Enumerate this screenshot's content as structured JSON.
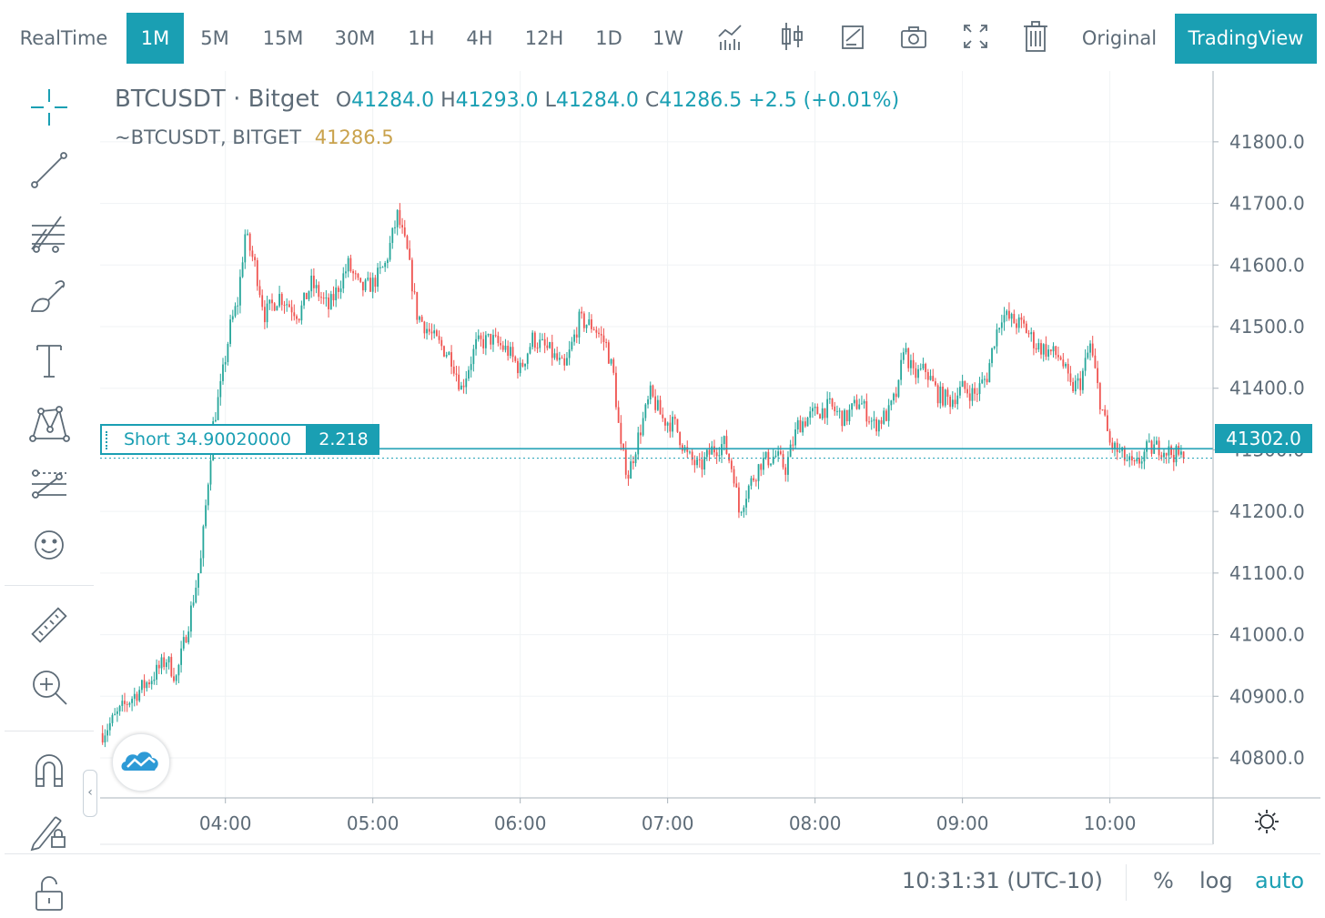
{
  "toolbar": {
    "intervals": [
      "RealTime",
      "1M",
      "5M",
      "15M",
      "30M",
      "1H",
      "4H",
      "12H",
      "1D",
      "1W"
    ],
    "active_interval": "1M",
    "icons": [
      "indicators-icon",
      "candle-type-icon",
      "edit-icon",
      "camera-icon",
      "fullscreen-icon",
      "trash-icon"
    ],
    "original_label": "Original",
    "tradingview_label": "TradingView"
  },
  "sidebar": {
    "icons": [
      "crosshair-icon",
      "trend-line-icon",
      "fib-icon",
      "brush-icon",
      "text-icon",
      "pattern-icon",
      "prediction-icon",
      "emoji-icon",
      "ruler-icon",
      "zoom-in-icon",
      "magnet-icon",
      "lock-drawing-icon",
      "unlock-icon"
    ]
  },
  "legend": {
    "symbol": "BTCUSDT",
    "separator": "·",
    "exchange": "Bitget",
    "o_label": "O",
    "o": "41284.0",
    "h_label": "H",
    "h": "41293.0",
    "l_label": "L",
    "l": "41284.0",
    "c_label": "C",
    "c": "41286.5",
    "change": "+2.5 (+0.01%)",
    "series_label": "~BTCUSDT, BITGET",
    "series_value": "41286.5"
  },
  "position": {
    "label": "Short 34.90020000",
    "qty": "2.218",
    "price": 41302.0,
    "price_label": "41302.0"
  },
  "bottom": {
    "time": "10:31:31 (UTC-10)",
    "percent_label": "%",
    "log_label": "log",
    "auto_label": "auto"
  },
  "colors": {
    "accent": "#1a9fb3",
    "up": "#26a69a",
    "down": "#ef5350",
    "gold": "#c9a24c",
    "text": "#5d6b77",
    "grid": "#f0f3f5"
  },
  "chart_data": {
    "type": "candlestick",
    "timeframe": "1M",
    "symbol": "BTCUSDT",
    "x_ticks": [
      "04:00",
      "05:00",
      "06:00",
      "07:00",
      "08:00",
      "09:00",
      "10:00"
    ],
    "y_ticks": [
      "40800.0",
      "40900.0",
      "41000.0",
      "41100.0",
      "41200.0",
      "41300.0",
      "41400.0",
      "41500.0",
      "41600.0",
      "41700.0",
      "41800.0"
    ],
    "ylim": [
      40735,
      41915
    ],
    "xlim": [
      "03:09",
      "10:42"
    ],
    "last_close": 41286.5,
    "grid": true,
    "close_path": [
      {
        "t": "03:10",
        "p": 40840
      },
      {
        "t": "03:20",
        "p": 40890
      },
      {
        "t": "03:30",
        "p": 40930
      },
      {
        "t": "03:36",
        "p": 40960
      },
      {
        "t": "03:40",
        "p": 40930
      },
      {
        "t": "03:45",
        "p": 41020
      },
      {
        "t": "03:50",
        "p": 41120
      },
      {
        "t": "03:55",
        "p": 41340
      },
      {
        "t": "03:58",
        "p": 41400
      },
      {
        "t": "04:02",
        "p": 41500
      },
      {
        "t": "04:05",
        "p": 41540
      },
      {
        "t": "04:08",
        "p": 41650
      },
      {
        "t": "04:12",
        "p": 41600
      },
      {
        "t": "04:16",
        "p": 41520
      },
      {
        "t": "04:22",
        "p": 41550
      },
      {
        "t": "04:30",
        "p": 41520
      },
      {
        "t": "04:35",
        "p": 41570
      },
      {
        "t": "04:42",
        "p": 41530
      },
      {
        "t": "04:50",
        "p": 41600
      },
      {
        "t": "04:55",
        "p": 41560
      },
      {
        "t": "05:00",
        "p": 41570
      },
      {
        "t": "05:05",
        "p": 41600
      },
      {
        "t": "05:10",
        "p": 41680
      },
      {
        "t": "05:14",
        "p": 41620
      },
      {
        "t": "05:18",
        "p": 41520
      },
      {
        "t": "05:25",
        "p": 41480
      },
      {
        "t": "05:32",
        "p": 41450
      },
      {
        "t": "05:36",
        "p": 41400
      },
      {
        "t": "05:42",
        "p": 41470
      },
      {
        "t": "05:48",
        "p": 41480
      },
      {
        "t": "05:55",
        "p": 41460
      },
      {
        "t": "06:00",
        "p": 41430
      },
      {
        "t": "06:05",
        "p": 41480
      },
      {
        "t": "06:12",
        "p": 41460
      },
      {
        "t": "06:18",
        "p": 41430
      },
      {
        "t": "06:24",
        "p": 41510
      },
      {
        "t": "06:30",
        "p": 41500
      },
      {
        "t": "06:35",
        "p": 41470
      },
      {
        "t": "06:38",
        "p": 41420
      },
      {
        "t": "06:41",
        "p": 41300
      },
      {
        "t": "06:44",
        "p": 41260
      },
      {
        "t": "06:48",
        "p": 41320
      },
      {
        "t": "06:53",
        "p": 41390
      },
      {
        "t": "06:58",
        "p": 41350
      },
      {
        "t": "07:03",
        "p": 41340
      },
      {
        "t": "07:08",
        "p": 41290
      },
      {
        "t": "07:13",
        "p": 41270
      },
      {
        "t": "07:18",
        "p": 41300
      },
      {
        "t": "07:23",
        "p": 41310
      },
      {
        "t": "07:27",
        "p": 41260
      },
      {
        "t": "07:29",
        "p": 41200
      },
      {
        "t": "07:33",
        "p": 41240
      },
      {
        "t": "07:38",
        "p": 41280
      },
      {
        "t": "07:44",
        "p": 41290
      },
      {
        "t": "07:48",
        "p": 41270
      },
      {
        "t": "07:53",
        "p": 41340
      },
      {
        "t": "08:00",
        "p": 41360
      },
      {
        "t": "08:06",
        "p": 41370
      },
      {
        "t": "08:12",
        "p": 41350
      },
      {
        "t": "08:18",
        "p": 41380
      },
      {
        "t": "08:24",
        "p": 41340
      },
      {
        "t": "08:30",
        "p": 41360
      },
      {
        "t": "08:34",
        "p": 41400
      },
      {
        "t": "08:36",
        "p": 41470
      },
      {
        "t": "08:40",
        "p": 41420
      },
      {
        "t": "08:45",
        "p": 41430
      },
      {
        "t": "08:50",
        "p": 41390
      },
      {
        "t": "08:55",
        "p": 41380
      },
      {
        "t": "09:00",
        "p": 41400
      },
      {
        "t": "09:05",
        "p": 41390
      },
      {
        "t": "09:10",
        "p": 41420
      },
      {
        "t": "09:13",
        "p": 41480
      },
      {
        "t": "09:16",
        "p": 41520
      },
      {
        "t": "09:20",
        "p": 41510
      },
      {
        "t": "09:25",
        "p": 41500
      },
      {
        "t": "09:30",
        "p": 41470
      },
      {
        "t": "09:35",
        "p": 41460
      },
      {
        "t": "09:40",
        "p": 41450
      },
      {
        "t": "09:44",
        "p": 41400
      },
      {
        "t": "09:48",
        "p": 41410
      },
      {
        "t": "09:52",
        "p": 41470
      },
      {
        "t": "09:56",
        "p": 41380
      },
      {
        "t": "10:00",
        "p": 41310
      },
      {
        "t": "10:05",
        "p": 41290
      },
      {
        "t": "10:10",
        "p": 41270
      },
      {
        "t": "10:15",
        "p": 41300
      },
      {
        "t": "10:20",
        "p": 41305
      },
      {
        "t": "10:25",
        "p": 41295
      },
      {
        "t": "10:30",
        "p": 41286.5
      }
    ]
  }
}
